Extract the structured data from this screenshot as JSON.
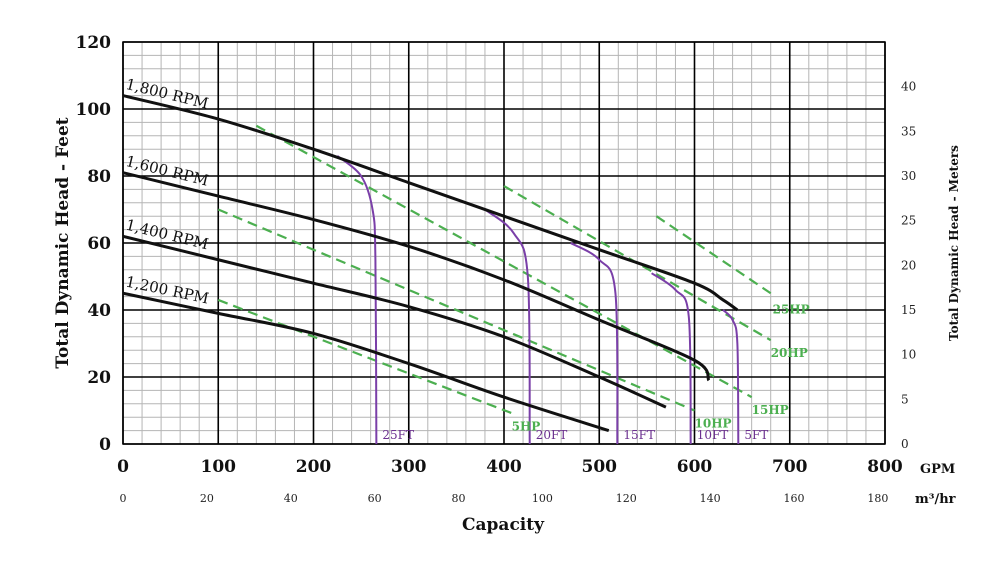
{
  "colors": {
    "rpm_curve": "#111111",
    "hp_line": "#4caf50",
    "npsh_curve": "#7a3fa8",
    "grid_minor": "#b5b5b5",
    "grid_major": "#000000"
  },
  "chart_data": {
    "type": "line",
    "title": "",
    "xlabel": "Capacity",
    "ylabel": "Total Dynamic Head - Feet",
    "ylabel_right": "Total Dynamic Head - Meters",
    "x_unit_primary": "GPM",
    "x_unit_secondary": "m³/hr",
    "xlim": [
      0,
      800
    ],
    "ylim": [
      0,
      120
    ],
    "ylim_right": [
      0,
      45
    ],
    "x_ticks": [
      "0",
      "100",
      "200",
      "300",
      "400",
      "500",
      "600",
      "700",
      "800"
    ],
    "y_ticks": [
      "0",
      "20",
      "40",
      "60",
      "80",
      "100",
      "120"
    ],
    "y_ticks_right": [
      "0",
      "5",
      "10",
      "15",
      "20",
      "25",
      "30",
      "35",
      "40"
    ],
    "x_ticks_secondary": [
      "0",
      "20",
      "40",
      "60",
      "80",
      "100",
      "120",
      "140",
      "160",
      "180"
    ],
    "grid": true,
    "series": [
      {
        "name": "1,800 RPM",
        "points": [
          [
            0,
            104
          ],
          [
            100,
            97
          ],
          [
            200,
            88
          ],
          [
            300,
            78
          ],
          [
            400,
            68
          ],
          [
            500,
            58
          ],
          [
            600,
            48
          ],
          [
            630,
            43
          ],
          [
            645,
            40
          ]
        ]
      },
      {
        "name": "1,600 RPM",
        "points": [
          [
            0,
            81
          ],
          [
            100,
            74
          ],
          [
            200,
            67
          ],
          [
            300,
            59
          ],
          [
            400,
            49
          ],
          [
            500,
            37
          ],
          [
            600,
            25
          ],
          [
            615,
            19
          ]
        ]
      },
      {
        "name": "1,400 RPM",
        "points": [
          [
            0,
            62
          ],
          [
            100,
            55
          ],
          [
            200,
            48
          ],
          [
            300,
            41
          ],
          [
            400,
            32
          ],
          [
            500,
            20
          ],
          [
            570,
            11
          ]
        ]
      },
      {
        "name": "1,200 RPM",
        "points": [
          [
            0,
            45
          ],
          [
            100,
            39
          ],
          [
            200,
            33
          ],
          [
            300,
            24
          ],
          [
            400,
            14
          ],
          [
            510,
            4
          ]
        ]
      }
    ],
    "hp_lines": [
      {
        "name": "5HP",
        "points": [
          [
            100,
            43
          ],
          [
            410,
            9
          ]
        ]
      },
      {
        "name": "10HP",
        "points": [
          [
            100,
            70
          ],
          [
            600,
            10
          ]
        ]
      },
      {
        "name": "15HP",
        "points": [
          [
            140,
            95
          ],
          [
            660,
            14
          ]
        ]
      },
      {
        "name": "20HP",
        "points": [
          [
            400,
            77
          ],
          [
            680,
            31
          ]
        ]
      },
      {
        "name": "25HP",
        "points": [
          [
            560,
            68
          ],
          [
            680,
            45
          ]
        ]
      }
    ],
    "npsh_curves": [
      {
        "name": "25FT",
        "points": [
          [
            225,
            86
          ],
          [
            250,
            80
          ],
          [
            262,
            70
          ],
          [
            265,
            55
          ],
          [
            266,
            0
          ]
        ]
      },
      {
        "name": "20FT",
        "points": [
          [
            380,
            70
          ],
          [
            410,
            63
          ],
          [
            425,
            50
          ],
          [
            427,
            0
          ]
        ]
      },
      {
        "name": "15FT",
        "points": [
          [
            470,
            60
          ],
          [
            500,
            55
          ],
          [
            517,
            45
          ],
          [
            519,
            0
          ]
        ]
      },
      {
        "name": "10FT",
        "points": [
          [
            555,
            51
          ],
          [
            580,
            46
          ],
          [
            594,
            38
          ],
          [
            596,
            0
          ]
        ]
      },
      {
        "name": "5FT",
        "points": [
          [
            630,
            40
          ],
          [
            640,
            37
          ],
          [
            645,
            30
          ],
          [
            646,
            0
          ]
        ]
      }
    ]
  }
}
